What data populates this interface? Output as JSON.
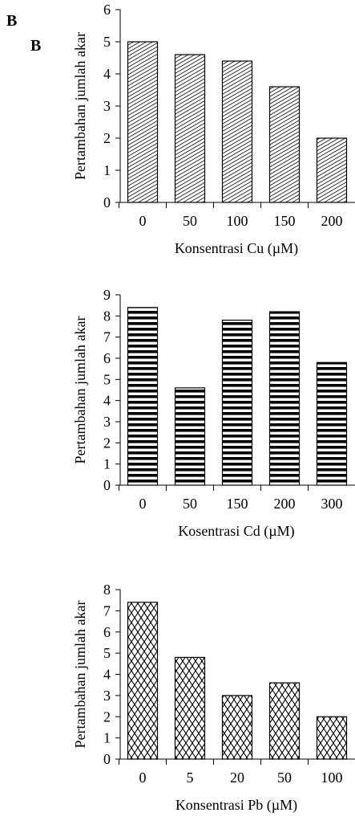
{
  "panel_labels": [
    "B",
    "B"
  ],
  "chart_data": [
    {
      "type": "bar",
      "categories": [
        "0",
        "50",
        "100",
        "150",
        "200"
      ],
      "values": [
        5.0,
        4.6,
        4.4,
        3.6,
        2.0
      ],
      "ylim": [
        0,
        6
      ],
      "yticks": [
        0,
        1,
        2,
        3,
        4,
        5,
        6
      ],
      "xlabel": "Konsentrasi Cu (µM)",
      "ylabel": "Pertambahan jumlah akar",
      "pattern": "diagonal-hatch",
      "grid": false
    },
    {
      "type": "bar",
      "categories": [
        "0",
        "50",
        "150",
        "200",
        "300"
      ],
      "values": [
        8.4,
        4.6,
        7.8,
        8.2,
        5.8
      ],
      "ylim": [
        0,
        9
      ],
      "yticks": [
        0,
        1,
        2,
        3,
        4,
        5,
        6,
        7,
        8,
        9
      ],
      "xlabel": "Kosentrasi Cd (µM)",
      "ylabel": "Pertambahan jumlah akar",
      "pattern": "horizontal-stripes",
      "grid": false
    },
    {
      "type": "bar",
      "categories": [
        "0",
        "5",
        "20",
        "50",
        "100"
      ],
      "values": [
        7.4,
        4.8,
        3.0,
        3.6,
        2.0
      ],
      "ylim": [
        0,
        8
      ],
      "yticks": [
        0,
        1,
        2,
        3,
        4,
        5,
        6,
        7,
        8
      ],
      "xlabel": "Konsentrasi Pb (µM)",
      "ylabel": "Pertambahan jumlah akar",
      "pattern": "crosshatch",
      "grid": false
    }
  ]
}
